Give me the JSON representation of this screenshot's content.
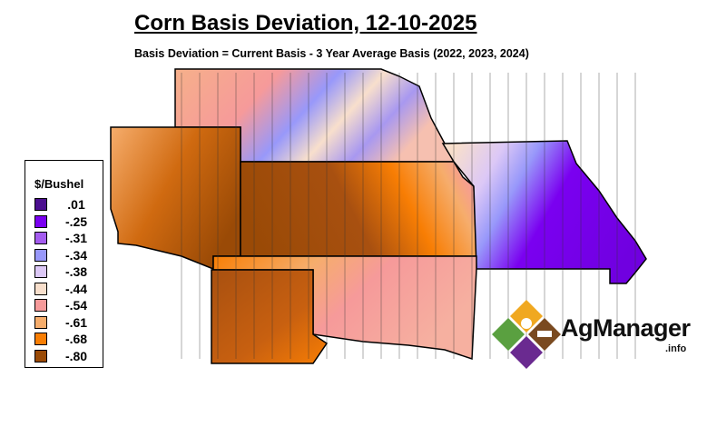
{
  "title": "Corn Basis Deviation, 12-10-2025",
  "subtitle": "Basis Deviation = Current Basis - 3 Year Average Basis (2022, 2023, 2024)",
  "legend": {
    "title": "$/Bushel",
    "items": [
      {
        "label": ".01",
        "color": "#4b0f8f"
      },
      {
        "label": "-.25",
        "color": "#7a00f0"
      },
      {
        "label": "-.31",
        "color": "#a45cef"
      },
      {
        "label": "-.34",
        "color": "#9898fa"
      },
      {
        "label": "-.38",
        "color": "#dcc8f6"
      },
      {
        "label": "-.44",
        "color": "#f8dfcc"
      },
      {
        "label": "-.54",
        "color": "#f69a9a"
      },
      {
        "label": "-.61",
        "color": "#f6ad6c"
      },
      {
        "label": "-.68",
        "color": "#f87e04"
      },
      {
        "label": "-.80",
        "color": "#9a4a06"
      }
    ]
  },
  "logo": {
    "name": "AgManager",
    "suffix": ".info"
  }
}
